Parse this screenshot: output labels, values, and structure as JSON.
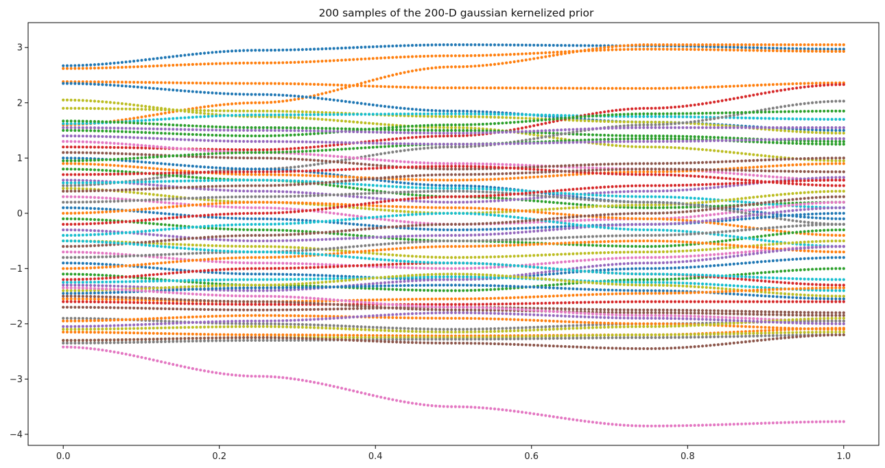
{
  "chart_data": {
    "type": "scatter",
    "title": "200 samples of the 200-D gaussian kernelized prior",
    "xlabel": "",
    "ylabel": "",
    "xlim": [
      -0.045,
      1.045
    ],
    "ylim": [
      -4.2,
      3.45
    ],
    "x_ticks": [
      0.0,
      0.2,
      0.4,
      0.6,
      0.8,
      1.0
    ],
    "x_tick_labels": [
      "0.0",
      "0.2",
      "0.4",
      "0.6",
      "0.8",
      "1.0"
    ],
    "y_ticks": [
      -4,
      -3,
      -2,
      -1,
      0,
      1,
      2,
      3
    ],
    "y_tick_labels": [
      "−4",
      "−3",
      "−2",
      "−1",
      "0",
      "1",
      "2",
      "3"
    ],
    "x_points": 200,
    "x_range": [
      0.0,
      1.0
    ],
    "grid": false,
    "legend": "none",
    "marker": ".",
    "color_cycle": [
      "#1f77b4",
      "#ff7f0e",
      "#2ca02c",
      "#d62728",
      "#9467bd",
      "#8c564b",
      "#e377c2",
      "#7f7f7f",
      "#bcbd22",
      "#17becf"
    ],
    "series_anchor_x": [
      0.0,
      0.25,
      0.5,
      0.75,
      1.0
    ],
    "series": [
      {
        "color": "#1f77b4",
        "anchors": [
          2.67,
          2.95,
          3.05,
          3.03,
          2.97
        ]
      },
      {
        "color": "#ff7f0e",
        "anchors": [
          2.62,
          2.72,
          2.85,
          2.97,
          2.93
        ]
      },
      {
        "color": "#ff7f0e",
        "anchors": [
          1.6,
          2.0,
          2.65,
          3.05,
          3.05
        ]
      },
      {
        "color": "#ff7f0e",
        "anchors": [
          2.38,
          2.35,
          2.27,
          2.26,
          2.36
        ]
      },
      {
        "color": "#1f77b4",
        "anchors": [
          2.35,
          2.15,
          1.85,
          1.65,
          1.5
        ]
      },
      {
        "color": "#bcbd22",
        "anchors": [
          2.05,
          1.75,
          1.55,
          1.2,
          0.95
        ]
      },
      {
        "color": "#bcbd22",
        "anchors": [
          1.9,
          1.85,
          1.75,
          1.65,
          1.45
        ]
      },
      {
        "color": "#17becf",
        "anchors": [
          1.62,
          1.78,
          1.8,
          1.75,
          1.7
        ]
      },
      {
        "color": "#d62728",
        "anchors": [
          1.2,
          1.15,
          1.4,
          1.9,
          2.33
        ]
      },
      {
        "color": "#2ca02c",
        "anchors": [
          1.67,
          1.55,
          1.5,
          1.4,
          1.3
        ]
      },
      {
        "color": "#7f7f7f",
        "anchors": [
          0.5,
          0.8,
          1.2,
          1.6,
          2.03
        ]
      },
      {
        "color": "#2ca02c",
        "anchors": [
          1.5,
          1.4,
          1.6,
          1.8,
          1.85
        ]
      },
      {
        "color": "#9467bd",
        "anchors": [
          1.55,
          1.5,
          1.45,
          1.55,
          1.55
        ]
      },
      {
        "color": "#e377c2",
        "anchors": [
          1.3,
          1.1,
          0.9,
          0.8,
          0.6
        ]
      },
      {
        "color": "#8c564b",
        "anchors": [
          1.1,
          1.0,
          0.8,
          0.9,
          1.0
        ]
      },
      {
        "color": "#1f77b4",
        "anchors": [
          1.0,
          0.8,
          0.5,
          0.2,
          -0.1
        ]
      },
      {
        "color": "#ff7f0e",
        "anchors": [
          0.9,
          0.7,
          0.6,
          0.75,
          0.9
        ]
      },
      {
        "color": "#2ca02c",
        "anchors": [
          0.8,
          0.6,
          0.3,
          0.1,
          0.2
        ]
      },
      {
        "color": "#d62728",
        "anchors": [
          0.7,
          0.75,
          0.85,
          0.7,
          0.5
        ]
      },
      {
        "color": "#9467bd",
        "anchors": [
          0.6,
          0.4,
          0.2,
          0.4,
          0.65
        ]
      },
      {
        "color": "#17becf",
        "anchors": [
          0.55,
          0.6,
          0.45,
          0.3,
          0.1
        ]
      },
      {
        "color": "#bcbd22",
        "anchors": [
          0.45,
          0.2,
          0.0,
          0.15,
          0.4
        ]
      },
      {
        "color": "#8c564b",
        "anchors": [
          0.4,
          0.5,
          0.7,
          0.8,
          0.75
        ]
      },
      {
        "color": "#e377c2",
        "anchors": [
          0.3,
          0.1,
          -0.2,
          -0.1,
          0.2
        ]
      },
      {
        "color": "#7f7f7f",
        "anchors": [
          0.2,
          0.3,
          0.4,
          0.2,
          -0.2
        ]
      },
      {
        "color": "#1f77b4",
        "anchors": [
          0.1,
          -0.1,
          -0.3,
          -0.2,
          0.0
        ]
      },
      {
        "color": "#ff7f0e",
        "anchors": [
          0.0,
          0.2,
          0.1,
          -0.1,
          -0.4
        ]
      },
      {
        "color": "#2ca02c",
        "anchors": [
          -0.1,
          -0.3,
          -0.5,
          -0.6,
          -0.3
        ]
      },
      {
        "color": "#d62728",
        "anchors": [
          -0.2,
          0.0,
          0.3,
          0.5,
          0.6
        ]
      },
      {
        "color": "#9467bd",
        "anchors": [
          -0.3,
          -0.5,
          -0.4,
          -0.2,
          0.1
        ]
      },
      {
        "color": "#17becf",
        "anchors": [
          -0.4,
          -0.2,
          0.0,
          -0.3,
          -0.6
        ]
      },
      {
        "color": "#bcbd22",
        "anchors": [
          -0.5,
          -0.6,
          -0.8,
          -0.7,
          -0.5
        ]
      },
      {
        "color": "#8c564b",
        "anchors": [
          -0.6,
          -0.4,
          -0.2,
          0.0,
          0.3
        ]
      },
      {
        "color": "#e377c2",
        "anchors": [
          -0.7,
          -0.9,
          -1.0,
          -0.8,
          -0.6
        ]
      },
      {
        "color": "#7f7f7f",
        "anchors": [
          -0.8,
          -0.7,
          -0.5,
          -0.4,
          -0.2
        ]
      },
      {
        "color": "#1f77b4",
        "anchors": [
          -0.9,
          -1.1,
          -1.2,
          -1.0,
          -0.8
        ]
      },
      {
        "color": "#ff7f0e",
        "anchors": [
          -1.0,
          -0.8,
          -0.6,
          -0.5,
          -0.7
        ]
      },
      {
        "color": "#2ca02c",
        "anchors": [
          -1.1,
          -1.3,
          -1.4,
          -1.2,
          -1.0
        ]
      },
      {
        "color": "#d62728",
        "anchors": [
          -1.2,
          -1.0,
          -0.9,
          -1.1,
          -1.3
        ]
      },
      {
        "color": "#9467bd",
        "anchors": [
          -1.3,
          -1.4,
          -1.2,
          -0.9,
          -0.6
        ]
      },
      {
        "color": "#17becf",
        "anchors": [
          -1.25,
          -1.2,
          -1.15,
          -1.25,
          -1.4
        ]
      },
      {
        "color": "#bcbd22",
        "anchors": [
          -1.4,
          -1.3,
          -1.1,
          -1.3,
          -1.5
        ]
      },
      {
        "color": "#1f77b4",
        "anchors": [
          -1.45,
          -1.35,
          -1.3,
          -1.4,
          -1.55
        ]
      },
      {
        "color": "#ff7f0e",
        "anchors": [
          -1.55,
          -1.6,
          -1.55,
          -1.45,
          -1.35
        ]
      },
      {
        "color": "#d62728",
        "anchors": [
          -1.6,
          -1.65,
          -1.65,
          -1.6,
          -1.6
        ]
      },
      {
        "color": "#8c564b",
        "anchors": [
          -1.7,
          -1.75,
          -1.7,
          -1.75,
          -1.8
        ]
      },
      {
        "color": "#8c564b",
        "anchors": [
          -1.5,
          -1.6,
          -1.75,
          -1.8,
          -1.85
        ]
      },
      {
        "color": "#e377c2",
        "anchors": [
          -1.35,
          -1.5,
          -1.7,
          -1.85,
          -1.95
        ]
      },
      {
        "color": "#7f7f7f",
        "anchors": [
          -1.9,
          -2.0,
          -2.1,
          -2.0,
          -1.95
        ]
      },
      {
        "color": "#ff7f0e",
        "anchors": [
          -1.95,
          -1.85,
          -1.9,
          -2.0,
          -2.1
        ]
      },
      {
        "color": "#bcbd22",
        "anchors": [
          -2.1,
          -2.05,
          -2.15,
          -2.05,
          -1.9
        ]
      },
      {
        "color": "#ff7f0e",
        "anchors": [
          -2.15,
          -2.2,
          -2.22,
          -2.2,
          -2.08
        ]
      },
      {
        "color": "#9467bd",
        "anchors": [
          -2.05,
          -1.95,
          -1.8,
          -1.9,
          -2.0
        ]
      },
      {
        "color": "#bcbd22",
        "anchors": [
          -2.3,
          -2.25,
          -2.25,
          -2.2,
          -2.15
        ]
      },
      {
        "color": "#7f7f7f",
        "anchors": [
          -2.35,
          -2.3,
          -2.28,
          -2.25,
          -2.2
        ]
      },
      {
        "color": "#8c564b",
        "anchors": [
          -2.3,
          -2.25,
          -2.35,
          -2.45,
          -2.2
        ]
      },
      {
        "color": "#e377c2",
        "anchors": [
          -2.42,
          -2.95,
          -3.5,
          -3.85,
          -3.77
        ]
      },
      {
        "color": "#17becf",
        "anchors": [
          -0.5,
          -0.7,
          -0.9,
          -1.1,
          -1.2
        ]
      },
      {
        "color": "#2ca02c",
        "anchors": [
          0.95,
          1.1,
          1.25,
          1.35,
          1.25
        ]
      },
      {
        "color": "#9467bd",
        "anchors": [
          1.4,
          1.3,
          1.25,
          1.3,
          1.35
        ]
      }
    ]
  }
}
